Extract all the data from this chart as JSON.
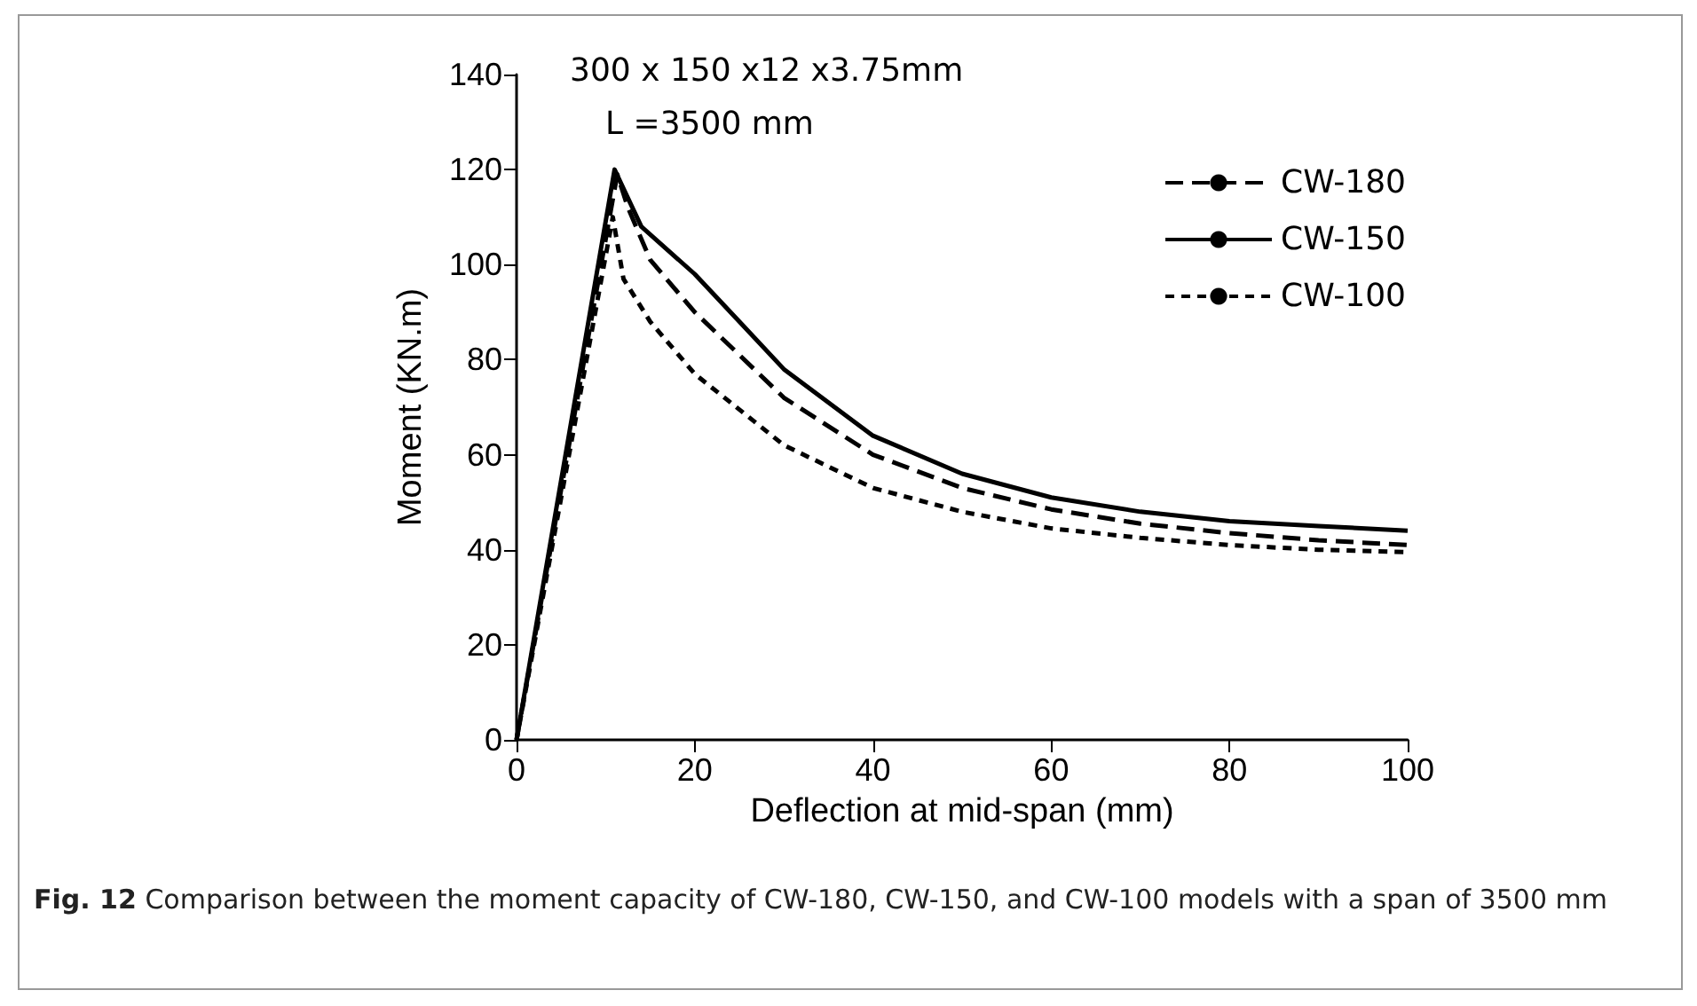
{
  "chart_data": {
    "type": "line",
    "xlabel": "Deflection at mid-span (mm)",
    "ylabel": "Moment (KN.m)",
    "xlim": [
      0,
      100
    ],
    "xticks": [
      0,
      20,
      40,
      60,
      80,
      100
    ],
    "ylim": [
      0,
      140
    ],
    "yticks": [
      0,
      20,
      40,
      60,
      80,
      100,
      120,
      140
    ],
    "grid": false,
    "legend": "top right",
    "marker": "none",
    "annotations": [
      "300 x 150 x12 x3.75mm",
      "L =3500 mm",
      "Fig. 12  Comparison between the moment capacity of CW-180, CW-150, and CW-100 models with a span of 3500 mm"
    ],
    "series": [
      {
        "name": "CW-180",
        "color": "#000000",
        "line_style": "dashed",
        "x": [
          0,
          11.3,
          12.5,
          15,
          20,
          30,
          40,
          50,
          60,
          70,
          80,
          90,
          100
        ],
        "values": [
          0,
          119,
          112,
          101,
          90,
          72,
          60,
          53,
          48.5,
          45.5,
          43.5,
          42,
          41
        ]
      },
      {
        "name": "CW-150",
        "color": "#000000",
        "line_style": "solid",
        "x": [
          0,
          11,
          12,
          14,
          20,
          25,
          30,
          40,
          50,
          60,
          70,
          80,
          90,
          100
        ],
        "values": [
          0,
          120,
          116,
          108,
          98,
          88,
          78,
          64,
          56,
          51,
          48,
          46,
          45,
          44
        ]
      },
      {
        "name": "CW-100",
        "color": "#000000",
        "line_style": "dotted",
        "x": [
          0,
          10.8,
          12,
          15,
          20,
          30,
          40,
          50,
          60,
          70,
          80,
          90,
          100
        ],
        "values": [
          0,
          110,
          97,
          88,
          77,
          62,
          53,
          48,
          44.5,
          42.5,
          41,
          40,
          39.5
        ]
      }
    ]
  }
}
